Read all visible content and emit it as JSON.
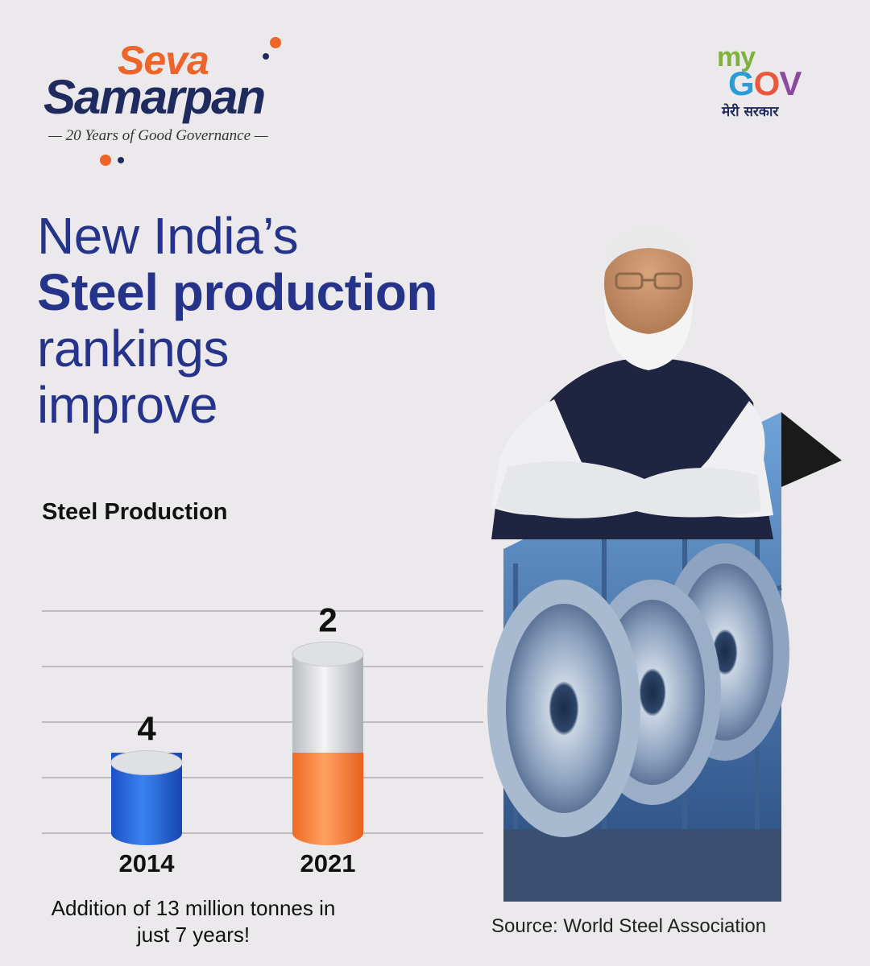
{
  "brand": {
    "seva": "Seva",
    "samarpan": "Samarpan",
    "tagline": "— 20 Years of Good Governance —"
  },
  "mygov": {
    "my": "my",
    "gov": "GOV",
    "hindi": "मेरी सरकार"
  },
  "headline": {
    "line1": "New India’s",
    "line2": "Steel production",
    "line3": "rankings",
    "line4": "improve"
  },
  "chart_data": {
    "type": "bar",
    "title": "Steel Production",
    "categories": [
      "2014",
      "2021"
    ],
    "values": [
      4,
      2
    ],
    "data_labels": [
      "4",
      "2"
    ],
    "colors": [
      "#2d6ddb",
      "#f57b35"
    ]
  },
  "note": "Addition of 13 million tonnes in just 7 years!",
  "source": "Source: World Steel Association"
}
